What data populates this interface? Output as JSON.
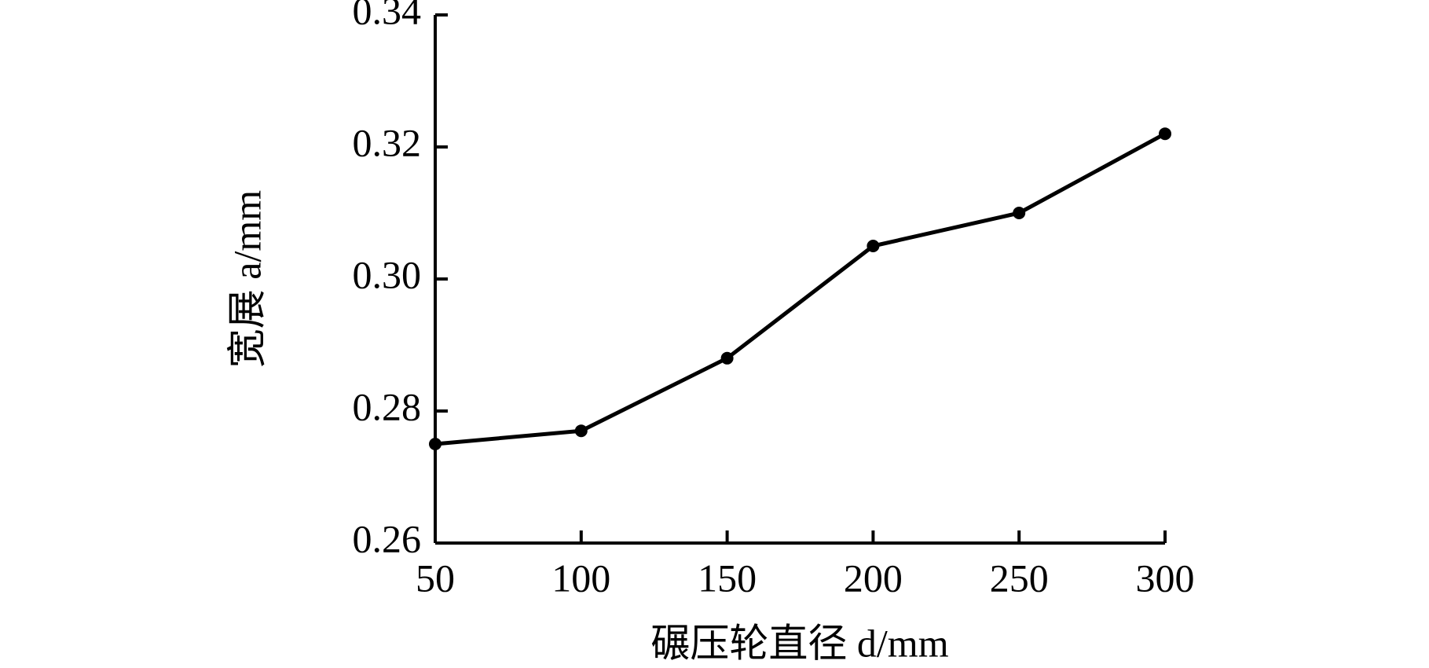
{
  "chart_data": {
    "type": "line",
    "xlabel": "碾压轮直径 d/mm",
    "ylabel": "宽展 a/mm",
    "x": [
      50,
      100,
      150,
      200,
      250,
      300
    ],
    "series": [
      {
        "color": "#000000",
        "values": [
          0.275,
          0.277,
          0.288,
          0.305,
          0.31,
          0.322
        ]
      }
    ],
    "xlim": [
      50,
      300
    ],
    "xticks": [
      50,
      100,
      150,
      200,
      250,
      300
    ],
    "ylim": [
      0.26,
      0.34
    ],
    "yticks": [
      0.26,
      0.28,
      0.3,
      0.32,
      0.34
    ],
    "grid": false
  }
}
